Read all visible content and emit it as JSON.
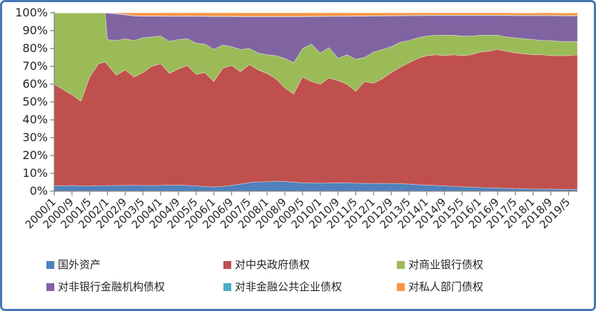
{
  "figure": {
    "border_color": "#4877b8",
    "background": "#ffffff",
    "axis_line_color": "#808080",
    "tick_color": "#808080",
    "label_color": "#262626"
  },
  "chart_data": {
    "type": "area",
    "stacking": "percent",
    "title": "",
    "xlabel": "",
    "ylabel": "",
    "ylim": [
      0,
      100
    ],
    "grid": false,
    "legend_position": "bottom",
    "y_tick_labels": [
      "0%",
      "10%",
      "20%",
      "30%",
      "40%",
      "50%",
      "60%",
      "70%",
      "80%",
      "90%",
      "100%"
    ],
    "x_tick_labels": [
      "2000/1",
      "2000/9",
      "2001/5",
      "2002/1",
      "2002/9",
      "2003/5",
      "2004/1",
      "2004/9",
      "2005/5",
      "2006/1",
      "2006/9",
      "2007/5",
      "2008/1",
      "2008/9",
      "2009/5",
      "2010/1",
      "2010/9",
      "2011/5",
      "2012/1",
      "2012/9",
      "2013/5",
      "2014/1",
      "2014/9",
      "2015/5",
      "2016/1",
      "2016/9",
      "2017/5",
      "2018/1",
      "2018/9",
      "2019/5"
    ],
    "x_tick_months": [
      0,
      8,
      16,
      24,
      32,
      40,
      48,
      56,
      64,
      72,
      80,
      88,
      96,
      104,
      112,
      120,
      128,
      136,
      144,
      152,
      160,
      168,
      176,
      184,
      192,
      200,
      208,
      216,
      224,
      232
    ],
    "month_span": 236,
    "periods": [
      "2000/1",
      "2000/5",
      "2000/9",
      "2001/1",
      "2001/5",
      "2001/9",
      "2001/12",
      "2002/1",
      "2002/5",
      "2002/9",
      "2003/1",
      "2003/5",
      "2003/9",
      "2004/1",
      "2004/5",
      "2004/9",
      "2005/1",
      "2005/5",
      "2005/9",
      "2006/1",
      "2006/5",
      "2006/9",
      "2007/1",
      "2007/5",
      "2007/9",
      "2008/1",
      "2008/5",
      "2008/9",
      "2009/1",
      "2009/5",
      "2009/9",
      "2010/1",
      "2010/5",
      "2010/9",
      "2011/1",
      "2011/5",
      "2011/9",
      "2012/1",
      "2012/5",
      "2012/9",
      "2013/1",
      "2013/5",
      "2013/9",
      "2014/1",
      "2014/5",
      "2014/9",
      "2015/1",
      "2015/5",
      "2015/9",
      "2016/1",
      "2016/5",
      "2016/9",
      "2017/1",
      "2017/5",
      "2017/9",
      "2018/1",
      "2018/5",
      "2018/9",
      "2019/1",
      "2019/5",
      "2019/9"
    ],
    "months": [
      0,
      4,
      8,
      12,
      16,
      20,
      23,
      24,
      28,
      32,
      36,
      40,
      44,
      48,
      52,
      56,
      60,
      64,
      68,
      72,
      76,
      80,
      84,
      88,
      92,
      96,
      100,
      104,
      108,
      112,
      116,
      120,
      124,
      128,
      132,
      136,
      140,
      144,
      148,
      152,
      156,
      160,
      164,
      168,
      172,
      176,
      180,
      184,
      188,
      192,
      196,
      200,
      204,
      208,
      212,
      216,
      220,
      224,
      228,
      232,
      236
    ],
    "series": [
      {
        "name": "国外资产",
        "color": "#4F81BD",
        "values": [
          3.2,
          3.0,
          3.2,
          3.0,
          3.0,
          3.1,
          3.1,
          3.2,
          3.2,
          3.3,
          3.3,
          3.2,
          3.2,
          3.3,
          3.4,
          3.4,
          3.3,
          3.0,
          2.6,
          2.4,
          2.7,
          3.3,
          4.0,
          4.8,
          5.2,
          5.3,
          5.6,
          5.4,
          5.0,
          4.7,
          4.6,
          4.5,
          4.6,
          4.7,
          4.6,
          4.5,
          4.4,
          4.3,
          4.4,
          4.3,
          4.2,
          4.0,
          3.7,
          3.4,
          3.2,
          3.0,
          2.7,
          2.5,
          2.3,
          2.1,
          1.9,
          1.8,
          1.6,
          1.5,
          1.4,
          1.3,
          1.2,
          1.2,
          1.1,
          1.1,
          1.0
        ]
      },
      {
        "name": "对中央政府债权",
        "color": "#C0504D",
        "values": [
          56.8,
          54.0,
          50.8,
          47.5,
          61.0,
          68.4,
          69.4,
          67.8,
          61.8,
          64.7,
          60.7,
          63.3,
          66.8,
          68.2,
          62.6,
          65.1,
          67.2,
          62.5,
          63.9,
          59.1,
          66.3,
          67.2,
          63.0,
          66.2,
          62.8,
          60.7,
          57.4,
          52.6,
          49.5,
          59.3,
          56.9,
          55.5,
          58.9,
          57.3,
          55.4,
          51.5,
          57.1,
          56.2,
          58.6,
          62.2,
          65.3,
          68.0,
          70.8,
          72.6,
          73.3,
          73.0,
          73.8,
          73.5,
          74.2,
          75.9,
          76.6,
          77.7,
          76.9,
          76.0,
          75.6,
          75.2,
          75.3,
          74.8,
          74.9,
          74.9,
          75.5
        ]
      },
      {
        "name": "对商业银行债权",
        "color": "#9BBB59",
        "values": [
          40.0,
          43.0,
          46.0,
          49.5,
          36.0,
          28.5,
          27.5,
          14.0,
          19.5,
          17.5,
          20.5,
          19.5,
          16.5,
          15.5,
          18.0,
          16.5,
          15.0,
          17.5,
          16.0,
          18.0,
          13.0,
          10.5,
          12.5,
          9.0,
          9.5,
          10.5,
          13.0,
          16.5,
          17.5,
          16.0,
          21.0,
          17.5,
          17.0,
          12.5,
          16.5,
          18.0,
          13.5,
          17.5,
          16.5,
          14.5,
          14.0,
          12.5,
          11.5,
          11.0,
          11.0,
          11.5,
          11.0,
          11.0,
          10.5,
          9.5,
          9.0,
          8.0,
          8.0,
          8.5,
          8.5,
          8.5,
          8.0,
          8.5,
          8.0,
          8.0,
          7.5
        ]
      },
      {
        "name": "对非银行金融机构债权",
        "color": "#8064A2",
        "values": [
          0,
          0,
          0,
          0,
          0,
          0,
          0,
          14.8,
          14.9,
          13.4,
          13.7,
          12.1,
          11.6,
          11.1,
          14.0,
          13.0,
          12.6,
          15.0,
          15.5,
          18.4,
          15.9,
          16.9,
          18.3,
          17.8,
          20.3,
          21.3,
          21.8,
          23.3,
          25.8,
          17.8,
          15.4,
          20.4,
          17.5,
          23.5,
          21.5,
          24.1,
          23.1,
          20.2,
          18.7,
          17.3,
          14.8,
          13.9,
          12.4,
          11.5,
          11.0,
          11.0,
          11.0,
          11.5,
          11.5,
          11.0,
          11.0,
          11.0,
          12.0,
          12.4,
          12.9,
          13.4,
          13.9,
          13.9,
          14.3,
          14.3,
          14.3
        ]
      },
      {
        "name": "对非金融公共企业债权",
        "color": "#4BACC6",
        "values": [
          0,
          0,
          0,
          0,
          0,
          0,
          0,
          0.1,
          0.2,
          0.2,
          0.2,
          0.2,
          0.2,
          0.2,
          0.2,
          0.2,
          0.2,
          0.2,
          0.2,
          0.2,
          0.2,
          0.2,
          0.2,
          0.2,
          0.2,
          0.2,
          0.2,
          0.2,
          0.2,
          0.2,
          0.2,
          0.2,
          0.2,
          0.2,
          0.2,
          0.2,
          0.2,
          0.2,
          0.2,
          0.2,
          0.2,
          0.2,
          0.2,
          0.2,
          0.2,
          0.2,
          0.2,
          0.2,
          0.2,
          0.2,
          0.2,
          0.2,
          0.2,
          0.2,
          0.2,
          0.2,
          0.2,
          0.2,
          0.2,
          0.2,
          0.2
        ]
      },
      {
        "name": "对私人部门债权",
        "color": "#F79646",
        "values": [
          0,
          0,
          0,
          0,
          0,
          0,
          0,
          0.1,
          0.4,
          0.9,
          1.6,
          1.7,
          1.7,
          1.7,
          1.8,
          1.8,
          1.7,
          1.8,
          1.8,
          1.9,
          1.9,
          1.9,
          2.0,
          2.0,
          2.0,
          2.0,
          2.0,
          2.0,
          2.0,
          2.0,
          1.9,
          1.9,
          1.8,
          1.8,
          1.8,
          1.7,
          1.7,
          1.6,
          1.6,
          1.5,
          1.5,
          1.4,
          1.4,
          1.3,
          1.3,
          1.3,
          1.3,
          1.3,
          1.3,
          1.3,
          1.3,
          1.3,
          1.3,
          1.3,
          1.3,
          1.3,
          1.4,
          1.4,
          1.4,
          1.4,
          1.5
        ]
      }
    ]
  }
}
